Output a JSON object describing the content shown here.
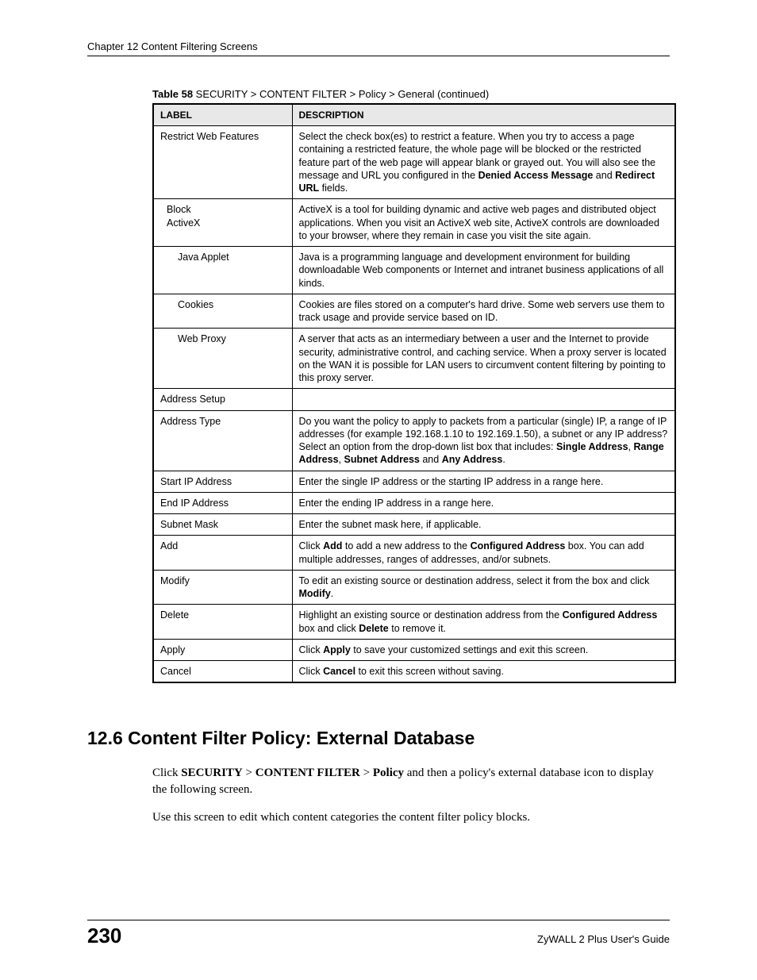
{
  "header": {
    "chapter": "Chapter 12 Content Filtering Screens"
  },
  "table": {
    "caption_bold": "Table 58",
    "caption_rest": "   SECURITY > CONTENT FILTER > Policy > General (continued)",
    "columns": [
      "LABEL",
      "DESCRIPTION"
    ],
    "rows": [
      {
        "label": "Restrict Web Features",
        "indent": 0,
        "desc_parts": [
          {
            "t": "Select the check box(es) to restrict a feature. When you try to access a page containing a restricted feature, the whole page will be blocked or the restricted feature part of the web page will appear blank or grayed out. You will also see the message and URL you configured in the "
          },
          {
            "t": "Denied Access Message",
            "b": true
          },
          {
            "t": " and "
          },
          {
            "t": "Redirect URL",
            "b": true
          },
          {
            "t": " fields."
          }
        ]
      },
      {
        "label": "Block",
        "label2": "ActiveX",
        "indent": 1,
        "desc_parts": [
          {
            "t": "ActiveX is a tool for building dynamic and active web pages and distributed object applications. When you visit an ActiveX web site, ActiveX controls are downloaded to your browser, where they remain in case you visit the site again."
          }
        ]
      },
      {
        "label": "Java Applet",
        "indent": 2,
        "desc_parts": [
          {
            "t": "Java is a programming language and development environment for building downloadable Web components or Internet and intranet business applications of all kinds."
          }
        ]
      },
      {
        "label": "Cookies",
        "indent": 2,
        "desc_parts": [
          {
            "t": "Cookies are files stored on a computer's hard drive. Some web servers use them to track usage and provide service based on ID."
          }
        ]
      },
      {
        "label": "Web Proxy",
        "indent": 2,
        "desc_parts": [
          {
            "t": "A server that acts as an intermediary between a user and the Internet to provide security, administrative control, and caching service. When a proxy server is located on the WAN it is possible for LAN users to circumvent content filtering by pointing to this proxy server."
          }
        ]
      },
      {
        "label": "Address Setup",
        "indent": 0,
        "desc_parts": [
          {
            "t": ""
          }
        ]
      },
      {
        "label": "Address Type",
        "indent": 0,
        "desc_parts": [
          {
            "t": "Do you want the policy to apply to packets from a particular (single) IP, a range of IP addresses (for example 192.168.1.10 to 192.169.1.50), a subnet or any IP address? Select an option from the drop-down list box that includes: "
          },
          {
            "t": "Single Address",
            "b": true
          },
          {
            "t": ", "
          },
          {
            "t": "Range Address",
            "b": true
          },
          {
            "t": ", "
          },
          {
            "t": "Subnet Address",
            "b": true
          },
          {
            "t": " and "
          },
          {
            "t": "Any Address",
            "b": true
          },
          {
            "t": "."
          }
        ]
      },
      {
        "label": "Start IP Address",
        "indent": 0,
        "desc_parts": [
          {
            "t": "Enter the single IP address or the starting IP address in a range here."
          }
        ]
      },
      {
        "label": "End IP Address",
        "indent": 0,
        "desc_parts": [
          {
            "t": "Enter the ending IP address in a range here."
          }
        ]
      },
      {
        "label": "Subnet Mask",
        "indent": 0,
        "desc_parts": [
          {
            "t": "Enter the subnet mask here, if applicable."
          }
        ]
      },
      {
        "label": "Add",
        "indent": 0,
        "desc_parts": [
          {
            "t": "Click "
          },
          {
            "t": "Add",
            "b": true
          },
          {
            "t": " to add a new address to the "
          },
          {
            "t": "Configured Address",
            "b": true
          },
          {
            "t": " box. You can add multiple addresses, ranges of addresses, and/or subnets."
          }
        ]
      },
      {
        "label": "Modify",
        "indent": 0,
        "desc_parts": [
          {
            "t": "To edit an existing source or destination address, select it from the box and click "
          },
          {
            "t": "Modify",
            "b": true
          },
          {
            "t": "."
          }
        ]
      },
      {
        "label": "Delete",
        "indent": 0,
        "desc_parts": [
          {
            "t": "Highlight an existing source or destination address from the "
          },
          {
            "t": "Configured Address",
            "b": true
          },
          {
            "t": " box and click "
          },
          {
            "t": "Delete",
            "b": true
          },
          {
            "t": " to remove it."
          }
        ]
      },
      {
        "label": "Apply",
        "indent": 0,
        "desc_parts": [
          {
            "t": "Click "
          },
          {
            "t": "Apply",
            "b": true
          },
          {
            "t": " to save your customized settings and exit this screen."
          }
        ]
      },
      {
        "label": "Cancel",
        "indent": 0,
        "desc_parts": [
          {
            "t": "Click "
          },
          {
            "t": "Cancel",
            "b": true
          },
          {
            "t": " to exit this screen without saving."
          }
        ]
      }
    ]
  },
  "section": {
    "heading": "12.6  Content Filter Policy: External Database",
    "para1_parts": [
      {
        "t": "Click "
      },
      {
        "t": "SECURITY",
        "b": true
      },
      {
        "t": " > "
      },
      {
        "t": "CONTENT FILTER",
        "b": true
      },
      {
        "t": " > "
      },
      {
        "t": "Policy",
        "b": true
      },
      {
        "t": " and then a policy's external database icon to display the following screen."
      }
    ],
    "para2": "Use this screen to edit which content categories the content filter policy blocks."
  },
  "footer": {
    "page": "230",
    "guide": "ZyWALL 2 Plus User's Guide"
  }
}
